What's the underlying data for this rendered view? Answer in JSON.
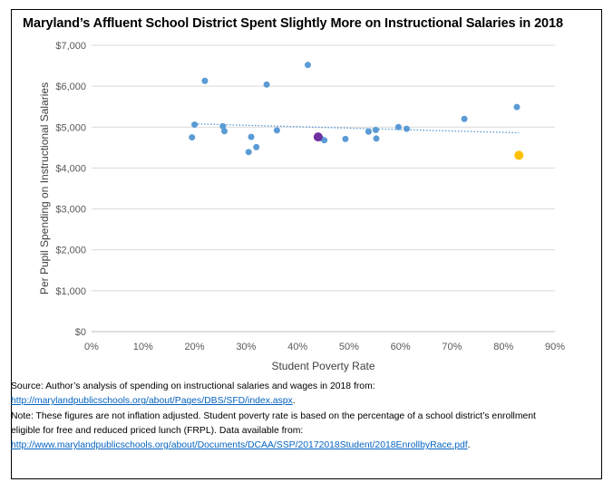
{
  "title": "Maryland’s Affluent School District Spent Slightly More on Instructional Salaries in 2018",
  "chart_data": {
    "type": "scatter",
    "xlabel": "Student Poverty Rate",
    "ylabel": "Per Pupil Spending on Instructional Salaries",
    "xlim": [
      0,
      0.9
    ],
    "ylim": [
      0,
      7000
    ],
    "x_ticks": [
      "0%",
      "10%",
      "20%",
      "30%",
      "40%",
      "50%",
      "60%",
      "70%",
      "80%",
      "90%"
    ],
    "y_ticks": [
      "$0",
      "$1,000",
      "$2,000",
      "$3,000",
      "$4,000",
      "$5,000",
      "$6,000",
      "$7,000"
    ],
    "grid": "horizontal",
    "legend": "none",
    "trendline": {
      "style": "dotted linear",
      "start": [
        0.2,
        5080
      ],
      "end": [
        0.83,
        4860
      ]
    },
    "colors": {
      "default": "#5B9BD5",
      "highlight_purple": "#7030A0",
      "highlight_gold": "#FFC000",
      "trendline": "#5B9BD5"
    },
    "points": [
      {
        "x": 0.195,
        "y": 4750,
        "color": "default"
      },
      {
        "x": 0.2,
        "y": 5060,
        "color": "default"
      },
      {
        "x": 0.22,
        "y": 6130,
        "color": "default"
      },
      {
        "x": 0.255,
        "y": 5020,
        "color": "default"
      },
      {
        "x": 0.258,
        "y": 4900,
        "color": "default"
      },
      {
        "x": 0.305,
        "y": 4390,
        "color": "default"
      },
      {
        "x": 0.31,
        "y": 4760,
        "color": "default"
      },
      {
        "x": 0.32,
        "y": 4510,
        "color": "default"
      },
      {
        "x": 0.34,
        "y": 6040,
        "color": "default"
      },
      {
        "x": 0.36,
        "y": 4920,
        "color": "default"
      },
      {
        "x": 0.42,
        "y": 6520,
        "color": "default"
      },
      {
        "x": 0.445,
        "y": 4730,
        "color": "default"
      },
      {
        "x": 0.452,
        "y": 4680,
        "color": "default"
      },
      {
        "x": 0.493,
        "y": 4710,
        "color": "default"
      },
      {
        "x": 0.538,
        "y": 4890,
        "color": "default"
      },
      {
        "x": 0.552,
        "y": 4930,
        "color": "default"
      },
      {
        "x": 0.553,
        "y": 4720,
        "color": "default"
      },
      {
        "x": 0.596,
        "y": 5000,
        "color": "default"
      },
      {
        "x": 0.612,
        "y": 4960,
        "color": "default"
      },
      {
        "x": 0.724,
        "y": 5200,
        "color": "default"
      },
      {
        "x": 0.826,
        "y": 5490,
        "color": "default"
      },
      {
        "x": 0.44,
        "y": 4760,
        "color": "highlight_purple",
        "highlight": true
      },
      {
        "x": 0.83,
        "y": 4310,
        "color": "highlight_gold",
        "highlight": true
      }
    ]
  },
  "source": {
    "line1": "Source: Author’s analysis of spending on instructional salaries and wages in 2018 from:",
    "link1": "http://marylandpublicschools.org/about/Pages/DBS/SFD/index.aspx",
    "link1_suffix": ".",
    "line2": "Note: These figures are not inflation adjusted. Student poverty rate is based on the percentage of a school district’s enrollment",
    "line3": "eligible for free and reduced priced lunch (FRPL). Data available from:",
    "link2": "http://www.marylandpublicschools.org/about/Documents/DCAA/SSP/20172018Student/2018EnrollbyRace.pdf",
    "link2_suffix": "."
  }
}
